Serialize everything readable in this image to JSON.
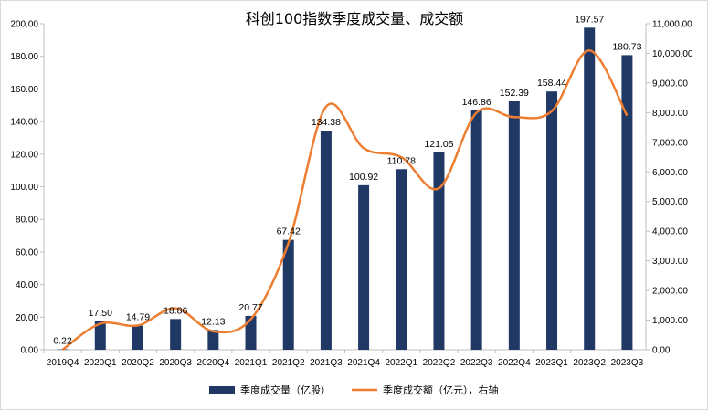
{
  "colors": {
    "bar": "#1f3864",
    "line": "#ed7d31",
    "axis": "#bfbfbf",
    "text": "#000000"
  },
  "chart_data": {
    "type": "bar",
    "title": "科创100指数季度成交量、成交额",
    "categories": [
      "2019Q4",
      "2020Q1",
      "2020Q2",
      "2020Q3",
      "2020Q4",
      "2021Q1",
      "2021Q2",
      "2021Q3",
      "2021Q4",
      "2022Q1",
      "2022Q2",
      "2022Q3",
      "2022Q4",
      "2023Q1",
      "2023Q2",
      "2023Q3"
    ],
    "series": [
      {
        "name": "季度成交量（亿股）",
        "type": "bar",
        "axis": "left",
        "values": [
          0.22,
          17.5,
          14.79,
          18.86,
          12.13,
          20.77,
          67.42,
          134.38,
          100.92,
          110.78,
          121.05,
          146.86,
          152.39,
          158.44,
          197.57,
          180.73
        ],
        "labels": [
          "0.22",
          "17.50",
          "14.79",
          "18.86",
          "12.13",
          "20.77",
          "67.42",
          "134.38",
          "100.92",
          "110.78",
          "121.05",
          "146.86",
          "152.39",
          "158.44",
          "197.57",
          "180.73"
        ]
      },
      {
        "name": "季度成交额（亿元），右轴",
        "type": "line",
        "axis": "right",
        "smooth": true,
        "values": [
          5,
          880,
          820,
          1400,
          620,
          1030,
          3600,
          8200,
          6800,
          6500,
          5450,
          8000,
          7850,
          8050,
          10100,
          7900
        ]
      }
    ],
    "ylim_left": [
      0,
      200
    ],
    "yticks_left": [
      "0.00",
      "20.00",
      "40.00",
      "60.00",
      "80.00",
      "100.00",
      "120.00",
      "140.00",
      "160.00",
      "180.00",
      "200.00"
    ],
    "ylim_right": [
      0,
      11000
    ],
    "yticks_right": [
      "0.00",
      "1,000.00",
      "2,000.00",
      "3,000.00",
      "4,000.00",
      "5,000.00",
      "6,000.00",
      "7,000.00",
      "8,000.00",
      "9,000.00",
      "10,000.00",
      "11,000.00"
    ],
    "grid": false,
    "legend_position": "bottom"
  }
}
